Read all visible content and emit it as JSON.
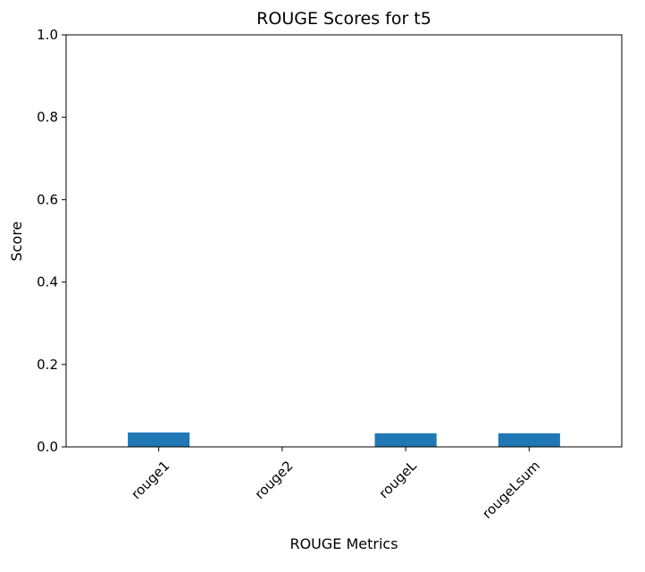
{
  "chart_data": {
    "type": "bar",
    "title": "ROUGE Scores for t5",
    "xlabel": "ROUGE Metrics",
    "ylabel": "Score",
    "categories": [
      "rouge1",
      "rouge2",
      "rougeL",
      "rougeLsum"
    ],
    "values": [
      0.035,
      0.0,
      0.033,
      0.033
    ],
    "ylim": [
      0,
      1.0
    ],
    "yticks": [
      "0.0",
      "0.2",
      "0.4",
      "0.6",
      "0.8",
      "1.0"
    ],
    "grid": false,
    "legend": "none",
    "bar_color": "#1f77b4",
    "xtick_rotation": "45°"
  }
}
